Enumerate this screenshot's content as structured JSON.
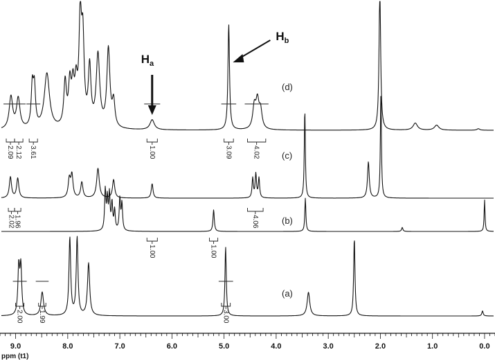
{
  "chart_data": {
    "type": "line",
    "xlabel": "ppm (t1)",
    "xlim": [
      9.3,
      -0.2
    ],
    "xticks": [
      {
        "value": 9.0,
        "label": "9.0"
      },
      {
        "value": 8.0,
        "label": "8.0"
      },
      {
        "value": 7.0,
        "label": "7.0"
      },
      {
        "value": 6.0,
        "label": "6.0"
      },
      {
        "value": 5.0,
        "label": "5.0"
      },
      {
        "value": 4.0,
        "label": "4.0"
      },
      {
        "value": 3.0,
        "label": "3.0"
      },
      {
        "value": 2.0,
        "label": "2.0"
      },
      {
        "value": 1.0,
        "label": "1.0"
      },
      {
        "value": 0.0,
        "label": "0.0"
      }
    ],
    "series": [
      {
        "name": "(d)",
        "peaks": [
          {
            "ppm": 9.09,
            "h": 0.32,
            "w": 0.04
          },
          {
            "ppm": 8.95,
            "h": 0.3,
            "w": 0.04
          },
          {
            "ppm": 8.68,
            "h": 0.4,
            "w": 0.025
          },
          {
            "ppm": 8.64,
            "h": 0.38,
            "w": 0.025
          },
          {
            "ppm": 8.4,
            "h": 0.55,
            "w": 0.06
          },
          {
            "ppm": 8.05,
            "h": 0.44,
            "w": 0.03
          },
          {
            "ppm": 7.96,
            "h": 0.4,
            "w": 0.03
          },
          {
            "ppm": 7.9,
            "h": 0.36,
            "w": 0.03
          },
          {
            "ppm": 7.84,
            "h": 0.36,
            "w": 0.03
          },
          {
            "ppm": 7.76,
            "h": 1.0,
            "w": 0.03
          },
          {
            "ppm": 7.71,
            "h": 0.8,
            "w": 0.03
          },
          {
            "ppm": 7.58,
            "h": 0.58,
            "w": 0.03
          },
          {
            "ppm": 7.42,
            "h": 0.72,
            "w": 0.04
          },
          {
            "ppm": 7.22,
            "h": 0.78,
            "w": 0.035
          },
          {
            "ppm": 7.12,
            "h": 0.25,
            "w": 0.03
          },
          {
            "ppm": 6.38,
            "h": 0.1,
            "w": 0.05
          },
          {
            "ppm": 4.91,
            "h": 1.05,
            "w": 0.018
          },
          {
            "ppm": 4.42,
            "h": 0.22,
            "w": 0.035
          },
          {
            "ppm": 4.36,
            "h": 0.26,
            "w": 0.035
          },
          {
            "ppm": 4.3,
            "h": 0.18,
            "w": 0.035
          },
          {
            "ppm": 2.01,
            "h": 1.45,
            "w": 0.018
          },
          {
            "ppm": 1.33,
            "h": 0.07,
            "w": 0.05
          },
          {
            "ppm": 0.92,
            "h": 0.05,
            "w": 0.05
          },
          {
            "ppm": 0.12,
            "h": 0.015,
            "w": 0.03
          }
        ],
        "integrals": [
          {
            "from": 9.18,
            "to": 9.02,
            "value": "2.09",
            "brace": "down"
          },
          {
            "from": 9.02,
            "to": 8.86,
            "value": "2.12",
            "brace": "down"
          },
          {
            "from": 8.74,
            "to": 8.58,
            "value": "3.61",
            "brace": "down"
          },
          {
            "from": 6.48,
            "to": 6.28,
            "value": "1.00",
            "brace": "down"
          },
          {
            "from": 5.0,
            "to": 4.82,
            "value": "3.09",
            "brace": "down"
          },
          {
            "from": 4.55,
            "to": 4.2,
            "value": "4.02",
            "brace": "down"
          }
        ]
      },
      {
        "name": "(c)",
        "peaks": [
          {
            "ppm": 9.1,
            "h": 0.32,
            "w": 0.025
          },
          {
            "ppm": 8.96,
            "h": 0.3,
            "w": 0.025
          },
          {
            "ppm": 7.97,
            "h": 0.28,
            "w": 0.025
          },
          {
            "ppm": 7.92,
            "h": 0.34,
            "w": 0.025
          },
          {
            "ppm": 7.73,
            "h": 0.24,
            "w": 0.025
          },
          {
            "ppm": 7.42,
            "h": 0.45,
            "w": 0.03
          },
          {
            "ppm": 7.12,
            "h": 0.28,
            "w": 0.025
          },
          {
            "ppm": 6.38,
            "h": 0.22,
            "w": 0.02
          },
          {
            "ppm": 4.45,
            "h": 0.3,
            "w": 0.015
          },
          {
            "ppm": 4.39,
            "h": 0.36,
            "w": 0.015
          },
          {
            "ppm": 4.33,
            "h": 0.3,
            "w": 0.015
          },
          {
            "ppm": 3.45,
            "h": 1.35,
            "w": 0.012
          },
          {
            "ppm": 2.23,
            "h": 0.55,
            "w": 0.02
          },
          {
            "ppm": 1.99,
            "h": 1.6,
            "w": 0.012
          }
        ],
        "integrals": []
      },
      {
        "name": "(b)",
        "peaks": [
          {
            "ppm": 7.28,
            "h": 1.2,
            "w": 0.015
          },
          {
            "ppm": 7.24,
            "h": 0.9,
            "w": 0.015
          },
          {
            "ppm": 7.2,
            "h": 1.05,
            "w": 0.015
          },
          {
            "ppm": 7.15,
            "h": 0.8,
            "w": 0.015
          },
          {
            "ppm": 7.1,
            "h": 0.6,
            "w": 0.015
          },
          {
            "ppm": 7.0,
            "h": 0.95,
            "w": 0.015
          },
          {
            "ppm": 6.96,
            "h": 0.8,
            "w": 0.015
          },
          {
            "ppm": 5.2,
            "h": 0.65,
            "w": 0.015
          },
          {
            "ppm": 3.44,
            "h": 1.0,
            "w": 0.012
          },
          {
            "ppm": 1.58,
            "h": 0.12,
            "w": 0.015
          },
          {
            "ppm": 0.0,
            "h": 0.95,
            "w": 0.01
          }
        ],
        "integrals": [
          {
            "from": 9.14,
            "to": 9.02,
            "value": "2.02",
            "brace": "down"
          },
          {
            "from": 9.02,
            "to": 8.9,
            "value": "1.96",
            "brace": "down"
          },
          {
            "from": 6.48,
            "to": 6.28,
            "value": "1.00",
            "brace": "down"
          },
          {
            "from": 4.55,
            "to": 4.25,
            "value": "4.06",
            "brace": "down"
          },
          {
            "from": 5.28,
            "to": 5.12,
            "value": "1.00",
            "brace": "down"
          }
        ]
      },
      {
        "name": "(a)",
        "peaks": [
          {
            "ppm": 8.94,
            "h": 0.56,
            "w": 0.02
          },
          {
            "ppm": 8.9,
            "h": 0.56,
            "w": 0.02
          },
          {
            "ppm": 8.49,
            "h": 0.28,
            "w": 0.03
          },
          {
            "ppm": 7.96,
            "h": 0.92,
            "w": 0.02
          },
          {
            "ppm": 7.82,
            "h": 0.92,
            "w": 0.02
          },
          {
            "ppm": 7.6,
            "h": 0.62,
            "w": 0.025
          },
          {
            "ppm": 4.97,
            "h": 0.82,
            "w": 0.015
          },
          {
            "ppm": 3.38,
            "h": 0.28,
            "w": 0.03
          },
          {
            "ppm": 2.5,
            "h": 0.92,
            "w": 0.015
          },
          {
            "ppm": 0.04,
            "h": 0.06,
            "w": 0.015
          }
        ],
        "integrals": [
          {
            "from": 9.0,
            "to": 8.84,
            "value": "2.00",
            "brace": "down"
          },
          {
            "from": 8.56,
            "to": 8.42,
            "value": "1.99",
            "brace": "down"
          },
          {
            "from": 5.05,
            "to": 4.88,
            "value": "3.00",
            "brace": "down"
          }
        ]
      }
    ],
    "annotations": [
      {
        "label": "H",
        "sub": "a",
        "target_ppm": 6.38,
        "series": "(d)"
      },
      {
        "label": "H",
        "sub": "b",
        "target_ppm": 4.91,
        "series": "(d)"
      }
    ]
  }
}
